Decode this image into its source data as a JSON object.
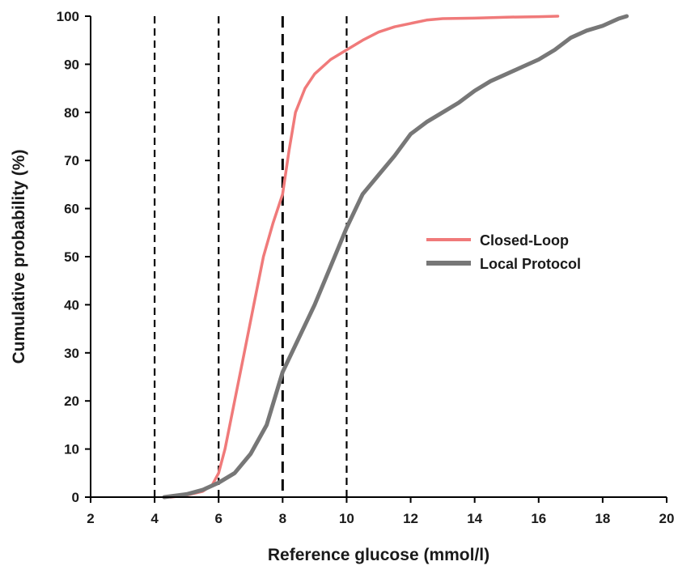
{
  "chart_data": {
    "type": "line",
    "title": "",
    "xlabel": "Reference glucose (mmol/l)",
    "ylabel": "Cumulative probability (%)",
    "xlim": [
      2,
      20
    ],
    "ylim": [
      0,
      100
    ],
    "x_ticks": [
      "2",
      "4",
      "6",
      "8",
      "10",
      "12",
      "14",
      "16",
      "18",
      "20"
    ],
    "y_ticks": [
      "0",
      "10",
      "20",
      "30",
      "40",
      "50",
      "60",
      "70",
      "80",
      "90",
      "100"
    ],
    "grid": false,
    "reference_lines_x": [
      4,
      6,
      8,
      10
    ],
    "legend_position": "right",
    "series": [
      {
        "name": "Closed-Loop",
        "color": "#f07a7a",
        "points": [
          [
            4.5,
            0
          ],
          [
            5.0,
            0.4
          ],
          [
            5.5,
            1.2
          ],
          [
            5.8,
            2.5
          ],
          [
            6.0,
            5
          ],
          [
            6.2,
            10
          ],
          [
            6.5,
            20
          ],
          [
            6.8,
            30
          ],
          [
            7.1,
            40
          ],
          [
            7.4,
            50
          ],
          [
            7.7,
            57
          ],
          [
            8.0,
            63
          ],
          [
            8.2,
            72
          ],
          [
            8.4,
            80
          ],
          [
            8.7,
            85
          ],
          [
            9.0,
            88
          ],
          [
            9.5,
            91
          ],
          [
            10.0,
            93
          ],
          [
            10.5,
            95
          ],
          [
            11.0,
            96.7
          ],
          [
            11.5,
            97.8
          ],
          [
            12.0,
            98.5
          ],
          [
            12.5,
            99.2
          ],
          [
            13.0,
            99.5
          ],
          [
            14.0,
            99.6
          ],
          [
            15.0,
            99.8
          ],
          [
            16.0,
            99.9
          ],
          [
            16.6,
            100
          ]
        ]
      },
      {
        "name": "Local Protocol",
        "color": "#777777",
        "points": [
          [
            4.3,
            0
          ],
          [
            5.0,
            0.6
          ],
          [
            5.5,
            1.5
          ],
          [
            6.0,
            3
          ],
          [
            6.5,
            5
          ],
          [
            7.0,
            9
          ],
          [
            7.5,
            15
          ],
          [
            8.0,
            26
          ],
          [
            8.5,
            33
          ],
          [
            9.0,
            40
          ],
          [
            9.5,
            48
          ],
          [
            10.0,
            56
          ],
          [
            10.5,
            63
          ],
          [
            11.0,
            67
          ],
          [
            11.5,
            71
          ],
          [
            12.0,
            75.5
          ],
          [
            12.5,
            78
          ],
          [
            13.0,
            80
          ],
          [
            13.5,
            82
          ],
          [
            14.0,
            84.5
          ],
          [
            14.5,
            86.5
          ],
          [
            15.0,
            88
          ],
          [
            15.5,
            89.5
          ],
          [
            16.0,
            91
          ],
          [
            16.5,
            93
          ],
          [
            17.0,
            95.5
          ],
          [
            17.5,
            97
          ],
          [
            18.0,
            98
          ],
          [
            18.5,
            99.5
          ],
          [
            18.75,
            100
          ]
        ]
      }
    ]
  }
}
